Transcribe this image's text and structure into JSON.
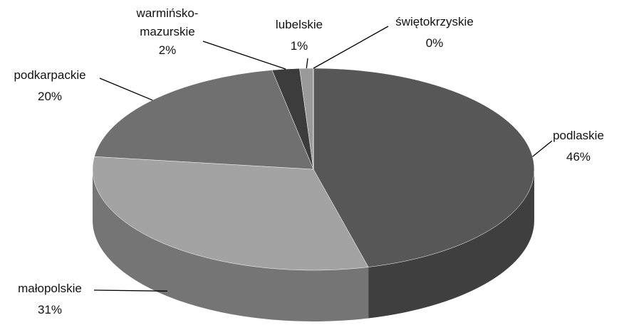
{
  "chart_data": {
    "type": "pie3d",
    "categories": [
      "podlaskie",
      "małopolskie",
      "podkarpackie",
      "warmińsko-mazurskie",
      "lubelskie",
      "świętokrzyskie"
    ],
    "values": [
      46,
      31,
      20,
      2,
      1,
      0
    ],
    "value_labels": [
      "46%",
      "31%",
      "20%",
      "2%",
      "1%",
      "0%"
    ],
    "colors": [
      "#575757",
      "#a3a3a3",
      "#707070",
      "#3c3c3c",
      "#9a9a9a",
      "#cfcfcf"
    ]
  }
}
